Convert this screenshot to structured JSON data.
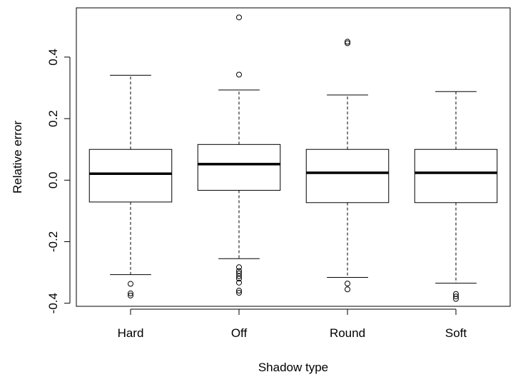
{
  "chart_data": {
    "type": "boxplot",
    "title": "",
    "xlabel": "Shadow type",
    "ylabel": "Relative error",
    "ylim": [
      -0.41,
      0.56
    ],
    "yticks": [
      -0.4,
      -0.2,
      0.0,
      0.2,
      0.4
    ],
    "ytick_labels": [
      "-0.4",
      "-0.2",
      "0.0",
      "0.2",
      "0.4"
    ],
    "categories": [
      "Hard",
      "Off",
      "Round",
      "Soft"
    ],
    "grid": false,
    "legend": "none",
    "boxes": [
      {
        "category": "Hard",
        "whisker_low": -0.307,
        "q1": -0.071,
        "median": 0.021,
        "q3": 0.1,
        "whisker_high": 0.341,
        "outliers": [
          -0.337,
          -0.368,
          -0.375
        ]
      },
      {
        "category": "Off",
        "whisker_low": -0.255,
        "q1": -0.033,
        "median": 0.052,
        "q3": 0.116,
        "whisker_high": 0.293,
        "outliers": [
          0.529,
          0.343,
          -0.283,
          -0.295,
          -0.303,
          -0.312,
          -0.32,
          -0.333,
          -0.359,
          -0.366
        ]
      },
      {
        "category": "Round",
        "whisker_low": -0.316,
        "q1": -0.073,
        "median": 0.024,
        "q3": 0.1,
        "whisker_high": 0.277,
        "outliers": [
          0.45,
          0.445,
          -0.336,
          -0.355
        ]
      },
      {
        "category": "Soft",
        "whisker_low": -0.335,
        "q1": -0.073,
        "median": 0.024,
        "q3": 0.1,
        "whisker_high": 0.288,
        "outliers": [
          -0.37,
          -0.378,
          -0.386
        ]
      }
    ]
  }
}
